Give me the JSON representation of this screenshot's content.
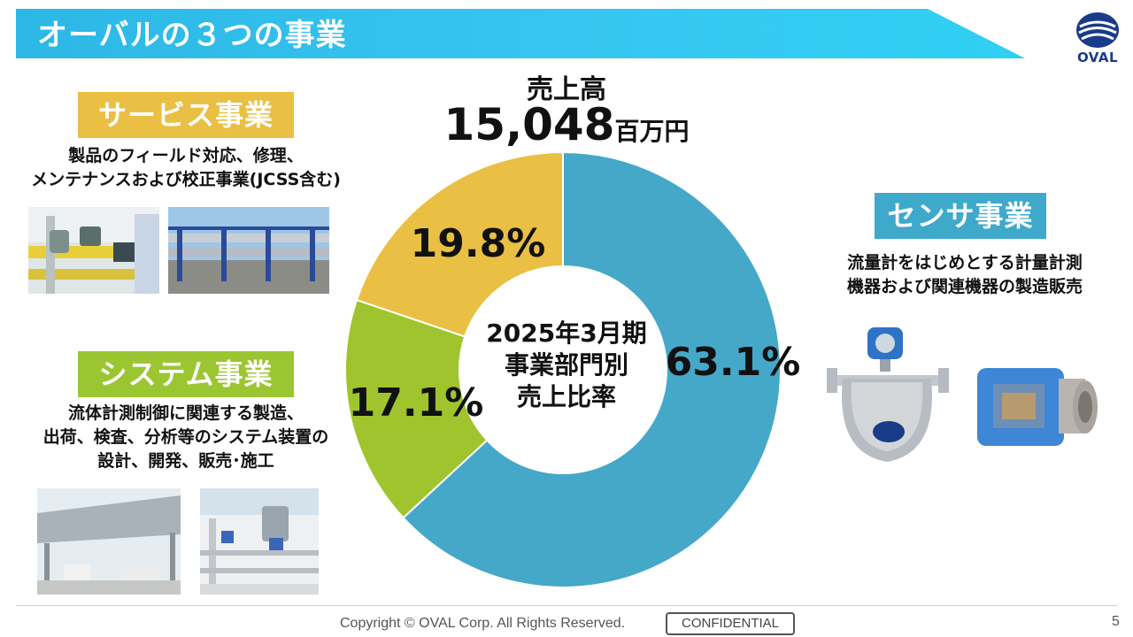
{
  "title": "オーバルの３つの事業",
  "logo": {
    "text": "OVAL",
    "color": "#1a3a8a"
  },
  "sales": {
    "label": "売上高",
    "value": "15,048",
    "unit": "百万円"
  },
  "segments": {
    "service": {
      "title": "サービス事業",
      "desc": [
        "製品のフィールド対応、修理、",
        "メンテナンスおよび校正事業(JCSS含む)"
      ],
      "color": "#e9c043"
    },
    "system": {
      "title": "システム事業",
      "desc": [
        "流体計測制御に関連する製造、",
        "出荷、検査、分析等のシステム装置の",
        "設計、開発、販売･施工"
      ],
      "color": "#9bc631"
    },
    "sensor": {
      "title": "センサ事業",
      "desc": [
        "流量計をはじめとする計量計測",
        "機器および関連機器の製造販売"
      ],
      "color": "#3fa9cb"
    }
  },
  "chart_data": {
    "type": "pie",
    "donut": true,
    "center_label": [
      "2025年3月期",
      "事業部門別",
      "売上比率"
    ],
    "slices": [
      {
        "label": "センサ事業",
        "value": 63.1,
        "display": "63.1%",
        "color": "#45a8c8"
      },
      {
        "label": "システム事業",
        "value": 17.1,
        "display": "17.1%",
        "color": "#9fc42d"
      },
      {
        "label": "サービス事業",
        "value": 19.8,
        "display": "19.8%",
        "color": "#e9c043"
      }
    ]
  },
  "footer": {
    "copyright": "Copyright © OVAL Corp. All Rights Reserved.",
    "confidential": "CONFIDENTIAL",
    "page": "5"
  }
}
